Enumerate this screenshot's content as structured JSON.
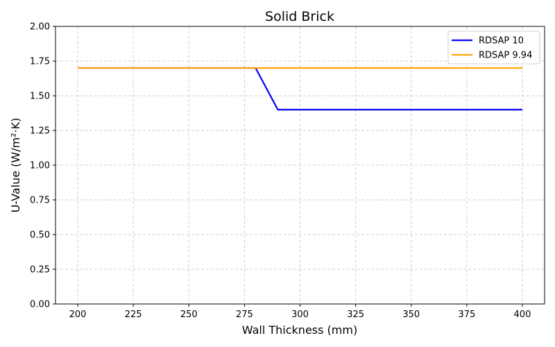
{
  "chart_data": {
    "type": "line",
    "title": "Solid Brick",
    "xlabel": "Wall Thickness (mm)",
    "ylabel": "U-Value (W/m²·K)",
    "xlim": [
      190,
      410
    ],
    "ylim": [
      0,
      2
    ],
    "xticks": [
      200,
      225,
      250,
      275,
      300,
      325,
      350,
      375,
      400
    ],
    "yticks": [
      0,
      0.25,
      0.5,
      0.75,
      1.0,
      1.25,
      1.5,
      1.75,
      2.0
    ],
    "ytick_decimals": 2,
    "grid": true,
    "legend_position": "top-right",
    "series": [
      {
        "name": "RDSAP 10",
        "color": "#0000ff",
        "x": [
          200,
          280,
          290,
          400
        ],
        "y": [
          1.7,
          1.7,
          1.4,
          1.4
        ]
      },
      {
        "name": "RDSAP 9.94",
        "color": "#ffa500",
        "x": [
          200,
          400
        ],
        "y": [
          1.7,
          1.7
        ]
      }
    ]
  }
}
